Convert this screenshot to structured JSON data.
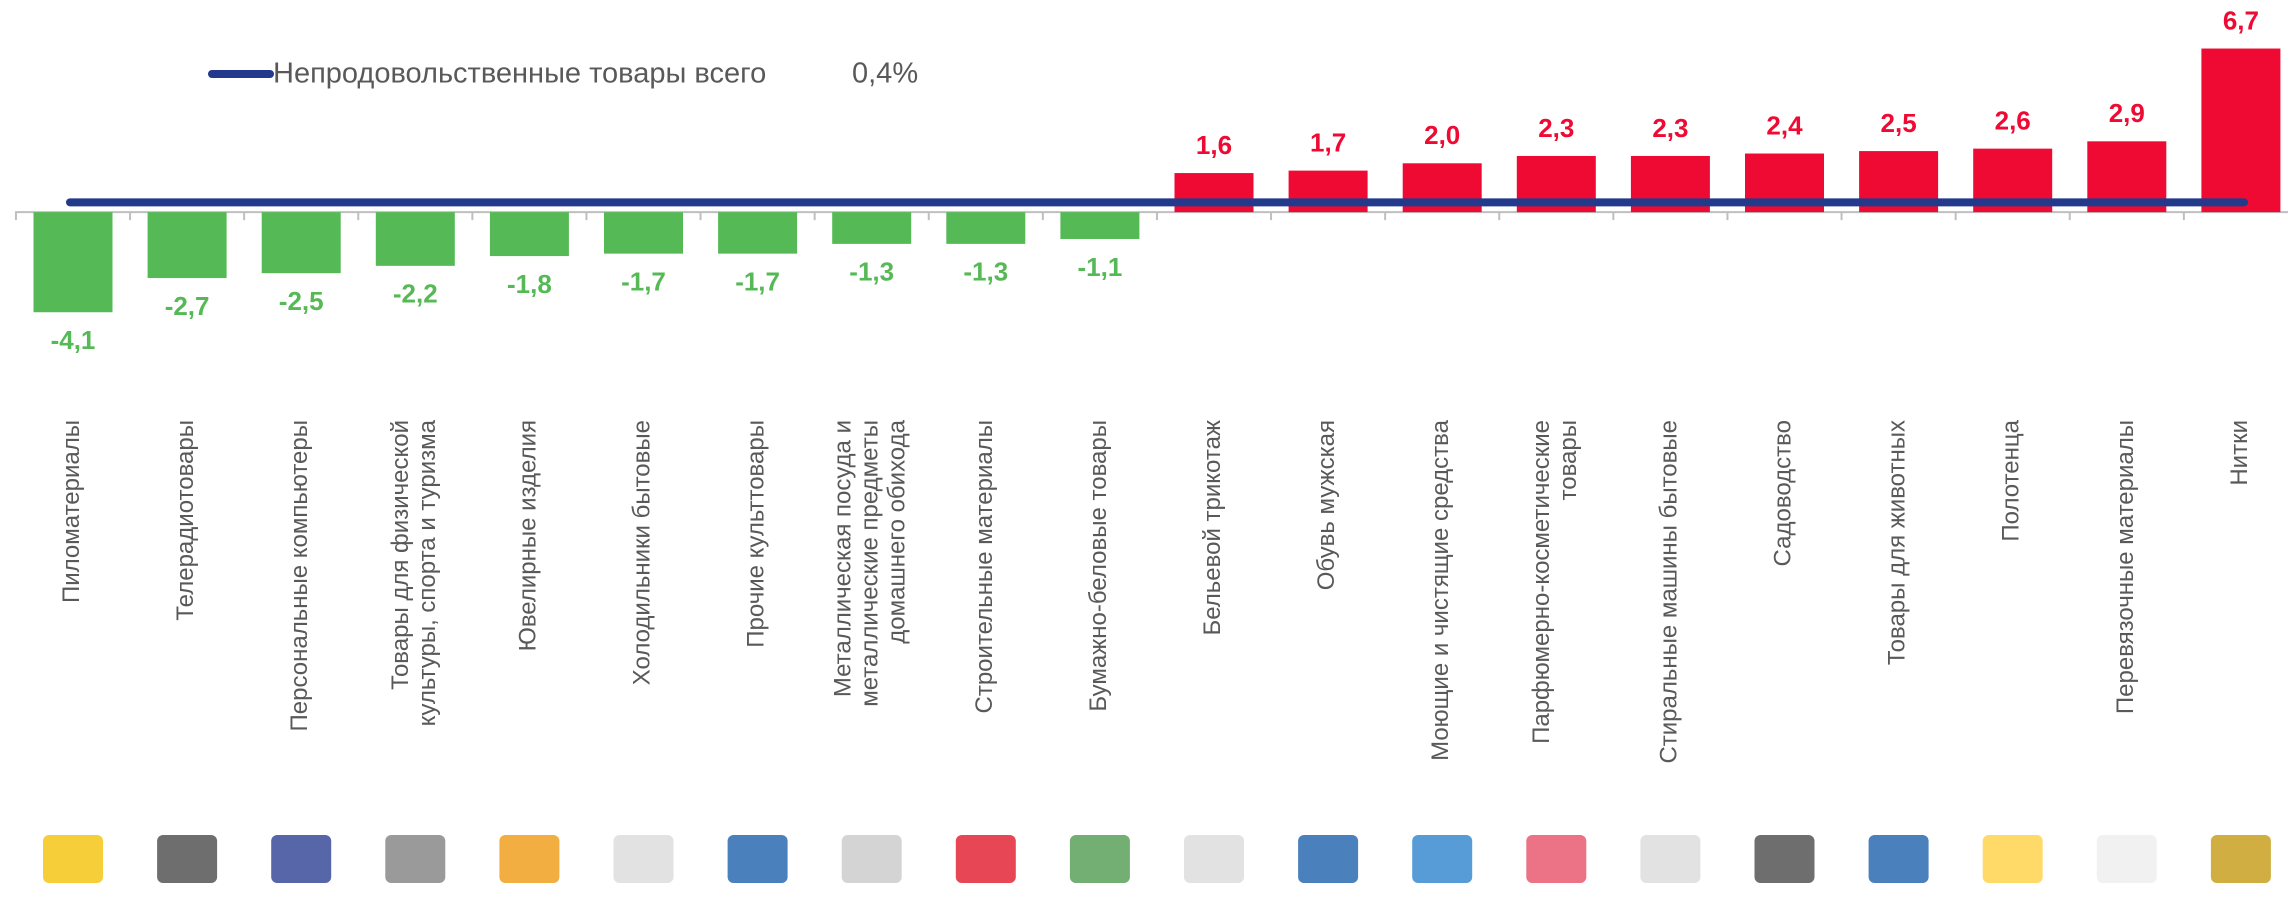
{
  "chart_data": {
    "type": "bar",
    "categories": [
      "Пиломатериалы",
      "Телерадиотовары",
      "Персональные компьютеры",
      "Товары для физической\nкультуры, спорта и туризма",
      "Ювелирные изделия",
      "Холодильники бытовые",
      "Прочие культтовары",
      "Металлическая посуда и\nметаллические предметы\nдомашнего обихода",
      "Строительные материалы",
      "Бумажно-беловые товары",
      "Бельевой трикотаж",
      "Обувь мужская",
      "Моющие и чистящие средства",
      "Парфюмерно-косметические\nтовары",
      "Стиральные машины бытовые",
      "Садоводство",
      "Товары для животных",
      "Полотенца",
      "Перевязочные материалы",
      "Нитки"
    ],
    "values": [
      -4.1,
      -2.7,
      -2.5,
      -2.2,
      -1.8,
      -1.7,
      -1.7,
      -1.3,
      -1.3,
      -1.1,
      1.6,
      1.7,
      2.0,
      2.3,
      2.3,
      2.4,
      2.5,
      2.6,
      2.9,
      6.7
    ],
    "value_labels": [
      "-4,1",
      "-2,7",
      "-2,5",
      "-2,2",
      "-1,8",
      "-1,7",
      "-1,7",
      "-1,3",
      "-1,3",
      "-1,1",
      "1,6",
      "1,7",
      "2,0",
      "2,3",
      "2,3",
      "2,4",
      "2,5",
      "2,6",
      "2,9",
      "6,7"
    ],
    "positive_color": "#ee0a32",
    "negative_color": "#55b955",
    "ylim": [
      -4.5,
      7.5
    ],
    "reference_line": {
      "name": "Непродовольственные товары всего",
      "value": 0.4,
      "value_label": "0,4%",
      "color": "#233a8c"
    }
  }
}
